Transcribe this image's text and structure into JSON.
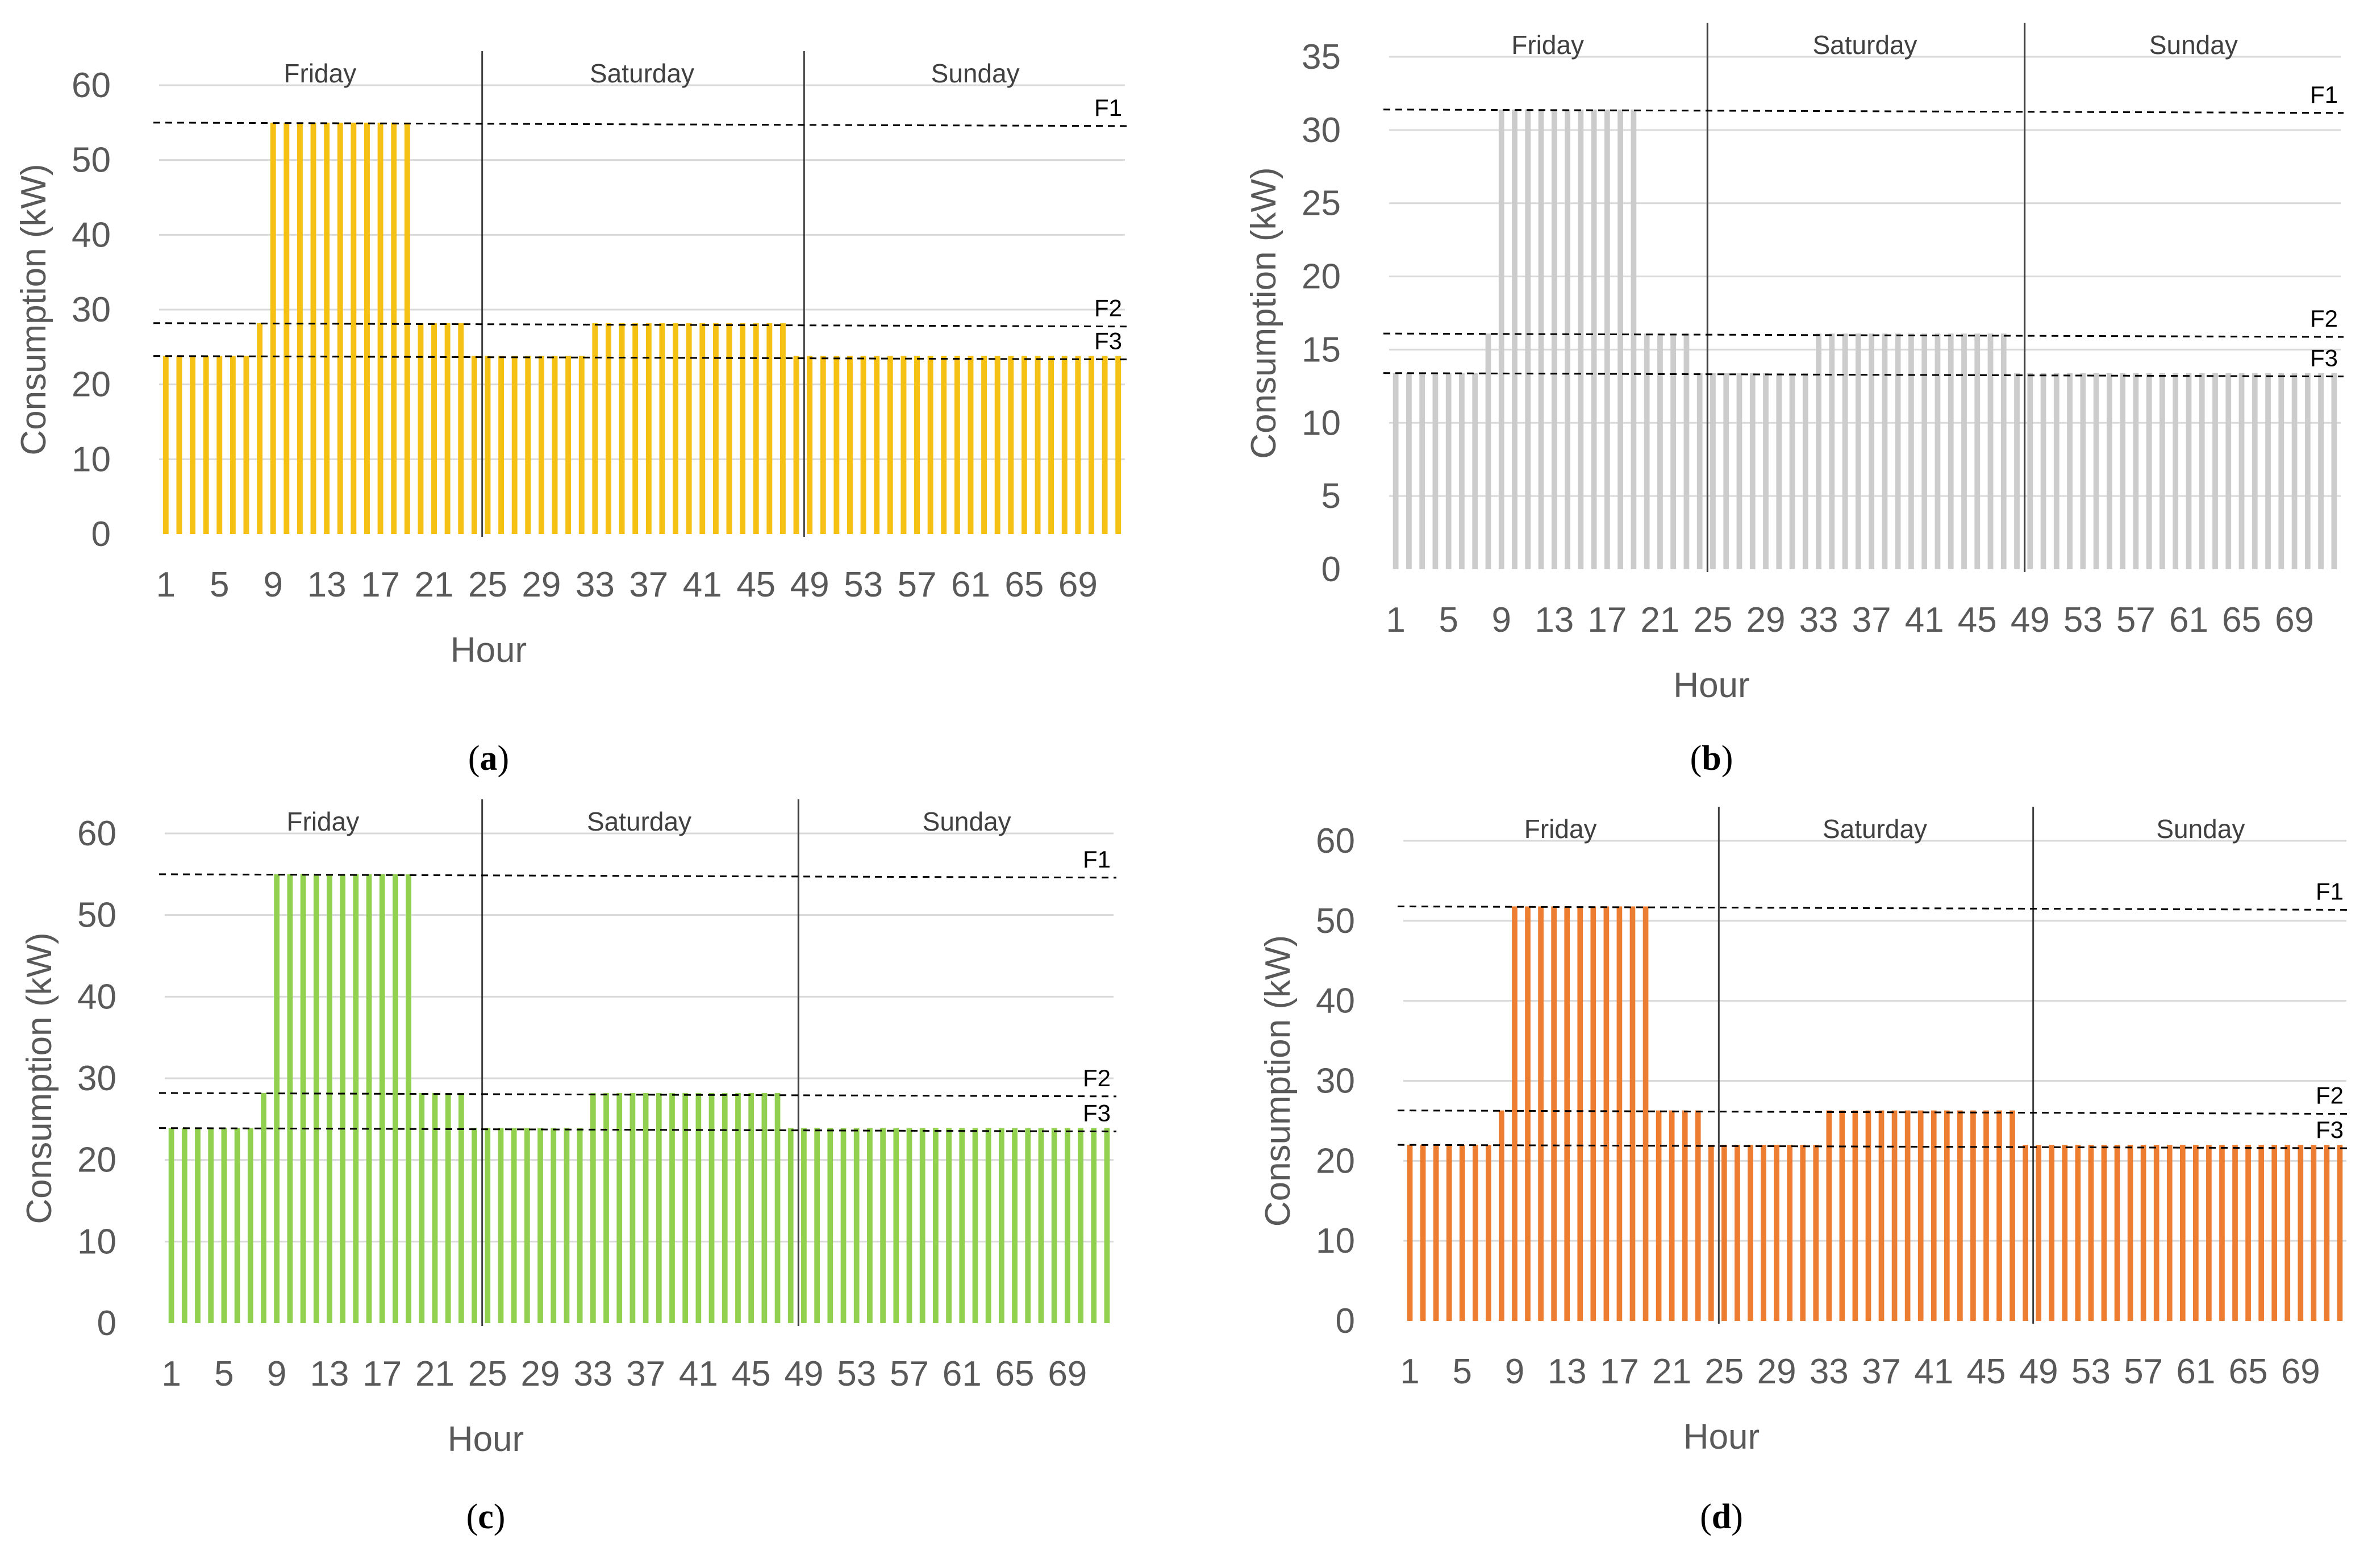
{
  "chart_data": [
    {
      "type": "bar",
      "panel": "a",
      "label_prefix": "(",
      "label_letter": "a",
      "label_suffix": ")",
      "color": "#f5c114",
      "xlabel": "Hour",
      "ylabel": "Consumption (kW)",
      "ylim": [
        0,
        60
      ],
      "yticks": [
        "0",
        "10",
        "20",
        "30",
        "40",
        "50",
        "60"
      ],
      "xticks": [
        "1",
        "5",
        "9",
        "13",
        "17",
        "21",
        "25",
        "29",
        "33",
        "37",
        "41",
        "45",
        "49",
        "53",
        "57",
        "61",
        "65",
        "69"
      ],
      "days": [
        "Friday",
        "Saturday",
        "Sunday"
      ],
      "levels": {
        "F1": 55,
        "F2": 28.2,
        "F3": 23.8
      },
      "reference_lines": [
        {
          "name": "F1",
          "value": 55
        },
        {
          "name": "F2",
          "value": 28.2
        },
        {
          "name": "F3",
          "value": 23.8
        }
      ],
      "profile": "hours 1-8: F3; 9-19: F1; 8 and 20-23: F2; 24-32: F3; 33-47: F2; 48-72: F3"
    },
    {
      "type": "bar",
      "panel": "b",
      "label_prefix": "(",
      "label_letter": "b",
      "label_suffix": ")",
      "color": "#cccccc",
      "xlabel": "Hour",
      "ylabel": "Consumption (kW)",
      "ylim": [
        0,
        35
      ],
      "yticks": [
        "0",
        "5",
        "10",
        "15",
        "20",
        "25",
        "30",
        "35"
      ],
      "xticks": [
        "1",
        "5",
        "9",
        "13",
        "17",
        "21",
        "25",
        "29",
        "33",
        "37",
        "41",
        "45",
        "49",
        "53",
        "57",
        "61",
        "65",
        "69"
      ],
      "days": [
        "Friday",
        "Saturday",
        "Sunday"
      ],
      "levels": {
        "F1": 31.4,
        "F2": 16.1,
        "F3": 13.4
      },
      "reference_lines": [
        {
          "name": "F1",
          "value": 31.4
        },
        {
          "name": "F2",
          "value": 16.1
        },
        {
          "name": "F3",
          "value": 13.4
        }
      ],
      "profile": "hours 1-8: F3; 9-19: F1; 8 and 20-23: F2; 24-32: F3; 33-47: F2; 48-72: F3"
    },
    {
      "type": "bar",
      "panel": "c",
      "label_prefix": "(",
      "label_letter": "c",
      "label_suffix": ")",
      "color": "#92d050",
      "xlabel": "Hour",
      "ylabel": "Consumption (kW)",
      "ylim": [
        0,
        60
      ],
      "yticks": [
        "0",
        "10",
        "20",
        "30",
        "40",
        "50",
        "60"
      ],
      "xticks": [
        "1",
        "5",
        "9",
        "13",
        "17",
        "21",
        "25",
        "29",
        "33",
        "37",
        "41",
        "45",
        "49",
        "53",
        "57",
        "61",
        "65",
        "69"
      ],
      "days": [
        "Friday",
        "Saturday",
        "Sunday"
      ],
      "levels": {
        "F1": 55,
        "F2": 28.2,
        "F3": 23.9
      },
      "reference_lines": [
        {
          "name": "F1",
          "value": 55
        },
        {
          "name": "F2",
          "value": 28.2
        },
        {
          "name": "F3",
          "value": 23.9
        }
      ],
      "profile": "hours 1-8: F3; 9-19: F1; 8 and 20-23: F2; 24-32: F3; 33-47: F2; 48-72: F3"
    },
    {
      "type": "bar",
      "panel": "d",
      "label_prefix": "(",
      "label_letter": "d",
      "label_suffix": ")",
      "color": "#ed7d31",
      "xlabel": "Hour",
      "ylabel": "Consumption (kW)",
      "ylim": [
        0,
        60
      ],
      "yticks": [
        "0",
        "10",
        "20",
        "30",
        "40",
        "50",
        "60"
      ],
      "xticks": [
        "1",
        "5",
        "9",
        "13",
        "17",
        "21",
        "25",
        "29",
        "33",
        "37",
        "41",
        "45",
        "49",
        "53",
        "57",
        "61",
        "65",
        "69"
      ],
      "days": [
        "Friday",
        "Saturday",
        "Sunday"
      ],
      "levels": {
        "F1": 51.8,
        "F2": 26.3,
        "F3": 22
      },
      "reference_lines": [
        {
          "name": "F1",
          "value": 51.8
        },
        {
          "name": "F2",
          "value": 26.3
        },
        {
          "name": "F3",
          "value": 22
        }
      ],
      "profile": "hours 1-8: F3; 9-19: F1; 8 and 20-23: F2; 24-32: F3; 33-47: F2; 48-72: F3"
    }
  ]
}
